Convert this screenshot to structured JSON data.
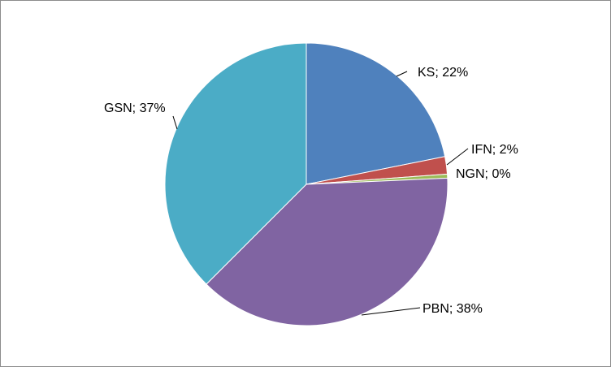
{
  "chart_data": {
    "type": "pie",
    "title": "",
    "legend": "none",
    "slices": [
      {
        "name": "KS",
        "value": 21.85,
        "label": "KS; 22%",
        "color": "#4f81bd"
      },
      {
        "name": "IFN",
        "value": 2.0,
        "label": "IFN; 2%",
        "color": "#c0504d"
      },
      {
        "name": "NGN",
        "value": 0.45,
        "label": "NGN; 0%",
        "color": "#9bbb59"
      },
      {
        "name": "PBN",
        "value": 38.2,
        "label": "PBN; 38%",
        "color": "#8064a2"
      },
      {
        "name": "GSN",
        "value": 37.5,
        "label": "GSN; 37%",
        "color": "#4bacc6"
      }
    ]
  }
}
